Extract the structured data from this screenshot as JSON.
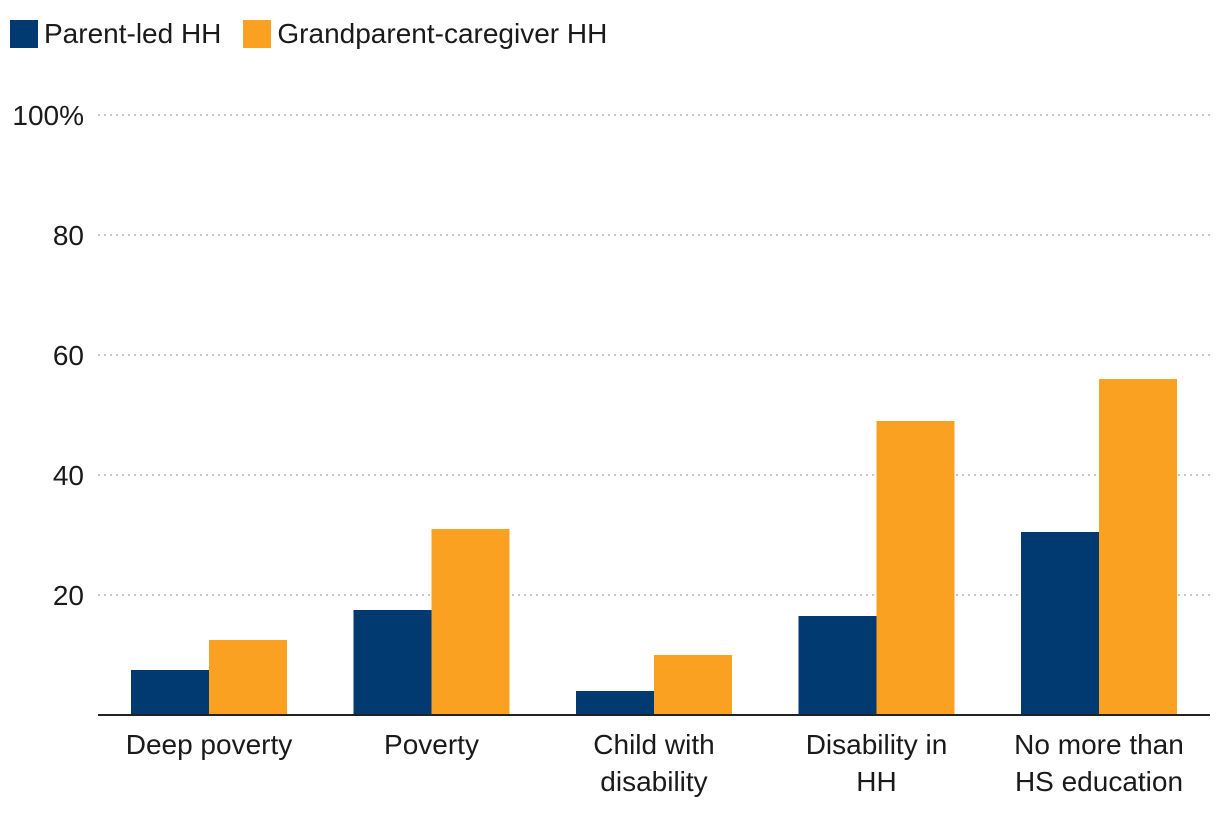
{
  "chart_data": {
    "type": "bar",
    "categories": [
      [
        "Deep poverty"
      ],
      [
        "Poverty"
      ],
      [
        "Child with",
        "disability"
      ],
      [
        "Disability in",
        "HH"
      ],
      [
        "No more than",
        "HS education"
      ]
    ],
    "series": [
      {
        "name": "Parent-led HH",
        "color": "#003a70",
        "values": [
          7.5,
          17.5,
          4,
          16.5,
          30.5
        ]
      },
      {
        "name": "Grandparent-caregiver HH",
        "color": "#fba122",
        "values": [
          12.5,
          31,
          10,
          49,
          56
        ]
      }
    ],
    "yticks": [
      {
        "value": 20,
        "label": "20"
      },
      {
        "value": 40,
        "label": "40"
      },
      {
        "value": 60,
        "label": "60"
      },
      {
        "value": 80,
        "label": "80"
      },
      {
        "value": 100,
        "label": "100%"
      }
    ],
    "ylim": [
      0,
      100
    ],
    "grid": true,
    "legend_position": "top-left"
  }
}
